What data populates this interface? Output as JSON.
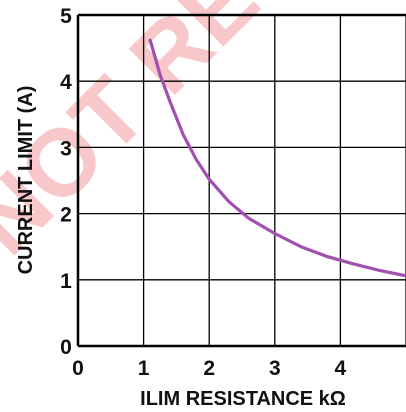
{
  "chart_data": {
    "type": "line",
    "xlabel": "ILIM RESISTANCE   kΩ",
    "ylabel": "CURRENT LIMIT (A)",
    "xlim": [
      0,
      5
    ],
    "ylim": [
      0,
      5
    ],
    "xticks": [
      "0",
      "1",
      "2",
      "3",
      "4"
    ],
    "yticks": [
      "0",
      "1",
      "2",
      "3",
      "4",
      "5"
    ],
    "grid": true,
    "series": [
      {
        "color": "#a14fb0",
        "x": [
          1.1,
          1.25,
          1.4,
          1.6,
          1.8,
          2.0,
          2.3,
          2.6,
          3.0,
          3.4,
          3.8,
          4.2,
          4.6,
          5.0
        ],
        "y": [
          4.62,
          4.1,
          3.7,
          3.2,
          2.82,
          2.52,
          2.18,
          1.93,
          1.7,
          1.5,
          1.35,
          1.24,
          1.14,
          1.06
        ]
      }
    ]
  },
  "watermark": "NOT RECOMMENDED FOR NEW DESIGN",
  "colors": {
    "curve": "#a14fb0",
    "grid": "#000000",
    "watermark": "#f29aa0"
  }
}
